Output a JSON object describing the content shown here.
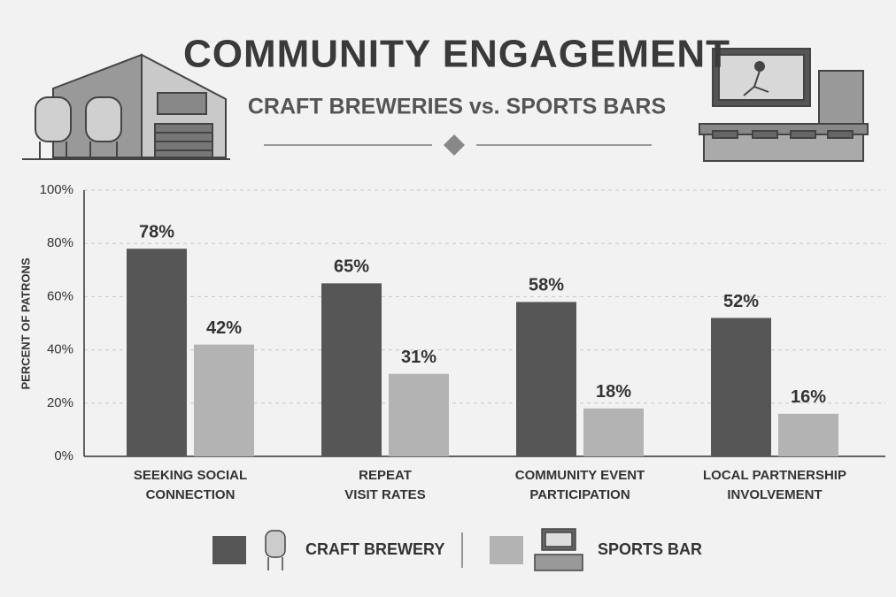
{
  "chart_data": {
    "type": "bar",
    "title": "COMMUNITY ENGAGEMENT",
    "subtitle": "CRAFT BREWERIES vs. SPORTS BARS",
    "y_label": "PERCENT OF PATRONS",
    "categories": [
      "SEEKING SOCIAL\nCONNECTION",
      "REPEAT\nVISIT RATES",
      "COMMUNITY EVENT\nPARTICIPATION",
      "LOCAL PARTNERSHIP\nINVOLVEMENT"
    ],
    "series": [
      {
        "name": "CRAFT BREWERY",
        "color": "#565656",
        "values": [
          78,
          65,
          58,
          52
        ],
        "value_labels": [
          "78%",
          "65%",
          "58%",
          "52%"
        ]
      },
      {
        "name": "SPORTS BAR",
        "color": "#b3b3b3",
        "values": [
          42,
          31,
          18,
          16
        ],
        "value_labels": [
          "42%",
          "31%",
          "18%",
          "16%"
        ]
      }
    ],
    "ylim": [
      0,
      100
    ],
    "yticks": [
      {
        "value": 0,
        "label": "0%"
      },
      {
        "value": 20,
        "label": "20%"
      },
      {
        "value": 40,
        "label": "40%"
      },
      {
        "value": 60,
        "label": "60%"
      },
      {
        "value": 80,
        "label": "80%"
      },
      {
        "value": 100,
        "label": "100%"
      }
    ],
    "grid": true
  }
}
